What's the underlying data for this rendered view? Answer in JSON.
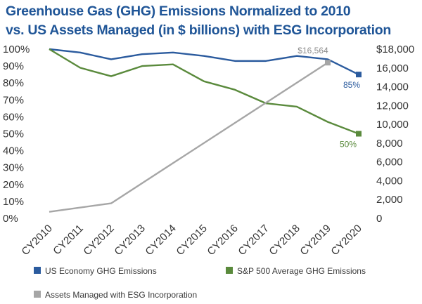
{
  "title_lines": [
    "Greenhouse Gas (GHG) Emissions Normalized to 2010",
    "vs. US Assets Managed (in $ billions) with ESG Incorporation"
  ],
  "chart_data": {
    "type": "line",
    "title": "Greenhouse Gas (GHG) Emissions Normalized to 2010 vs. US Assets Managed (in $ billions) with ESG Incorporation",
    "categories": [
      "CY2010",
      "CY2011",
      "CY2012",
      "CY2013",
      "CY2014",
      "CY2015",
      "CY2016",
      "CY2017",
      "CY2018",
      "CY2019",
      "CY2020"
    ],
    "y_left": {
      "ticks": [
        "0%",
        "10%",
        "20%",
        "30%",
        "40%",
        "50%",
        "60%",
        "70%",
        "80%",
        "90%",
        "100%"
      ],
      "range": [
        0,
        100
      ]
    },
    "y_right": {
      "ticks": [
        "0",
        "2,000",
        "4,000",
        "6,000",
        "8,000",
        "10,000",
        "12,000",
        "14,000",
        "16,000",
        "$18,000"
      ],
      "range": [
        0,
        18000
      ]
    },
    "grid": false,
    "legend_position": "bottom",
    "series": [
      {
        "name": "US Economy GHG Emissions",
        "axis": "left",
        "color": "#2b5b9e",
        "values": [
          100,
          98,
          94,
          97,
          98,
          96,
          93,
          93,
          96,
          94,
          85
        ],
        "end_label": "85%",
        "end_label_color": "#2b5b9e"
      },
      {
        "name": "S&P 500 Average GHG Emissions",
        "axis": "left",
        "color": "#5a8a3c",
        "values": [
          100,
          89,
          84,
          90,
          91,
          81,
          76,
          68,
          66,
          57,
          50
        ],
        "end_label": "50%",
        "end_label_color": "#5a8a3c"
      },
      {
        "name": "Assets Managed with ESG Incorporation",
        "axis": "right",
        "color": "#a6a6a6",
        "x_start": 0.0,
        "x_end": 9.0,
        "points": [
          [
            0.0,
            700
          ],
          [
            2.0,
            1600
          ],
          [
            9.0,
            16564
          ]
        ],
        "end_label": "$16,564",
        "end_label_color": "#8c8c8c"
      }
    ]
  }
}
